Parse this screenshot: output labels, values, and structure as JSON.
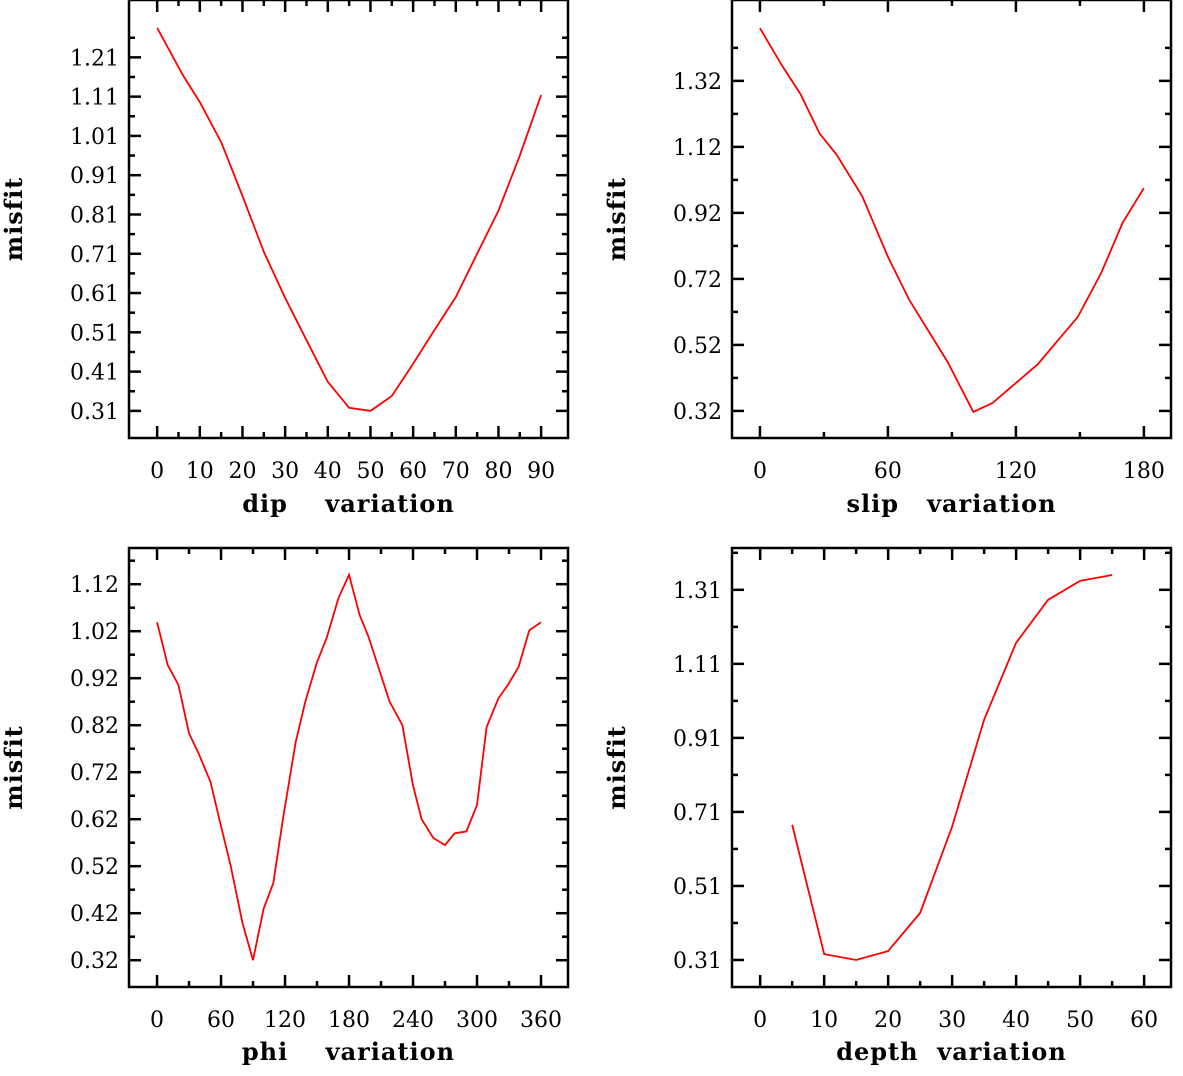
{
  "colors": {
    "line": "#ff0000",
    "axis": "#000000"
  },
  "chart_data": [
    {
      "type": "line",
      "title": "",
      "xlabel": "dip    variation",
      "ylabel": "misfit",
      "xlim": [
        -6.6,
        96.3
      ],
      "ylim": [
        0.241,
        1.356
      ],
      "xticks": [
        0,
        10,
        20,
        30,
        40,
        50,
        60,
        70,
        80,
        90
      ],
      "xtick_labels": [
        "0",
        "10",
        "20",
        "30",
        "40",
        "50",
        "60",
        "70",
        "80",
        "90"
      ],
      "yticks": [
        0.31,
        0.41,
        0.51,
        0.61,
        0.71,
        0.81,
        0.91,
        1.01,
        1.11,
        1.21
      ],
      "ytick_labels": [
        "0.31",
        "0.41",
        "0.51",
        "0.61",
        "0.71",
        "0.81",
        "0.91",
        "1.01",
        "1.11",
        "1.21"
      ],
      "grid": false,
      "series": [
        {
          "name": "dip",
          "x": [
            0,
            6,
            10,
            15,
            20,
            25,
            30,
            35,
            40,
            45,
            50,
            55,
            60,
            65,
            70,
            75,
            80,
            85,
            90
          ],
          "y": [
            1.285,
            1.165,
            1.096,
            0.994,
            0.857,
            0.715,
            0.598,
            0.49,
            0.384,
            0.318,
            0.31,
            0.348,
            0.43,
            0.516,
            0.6,
            0.71,
            0.82,
            0.96,
            1.114
          ]
        }
      ]
    },
    {
      "type": "line",
      "title": "",
      "xlabel": "slip   variation",
      "ylabel": "misfit",
      "xlim": [
        -13.1,
        192.7
      ],
      "ylim": [
        0.238,
        1.565
      ],
      "xticks": [
        0,
        60,
        120,
        180
      ],
      "xtick_labels": [
        "0",
        "60",
        "120",
        "180"
      ],
      "yticks": [
        0.32,
        0.52,
        0.72,
        0.92,
        1.12,
        1.32
      ],
      "ytick_labels": [
        "0.32",
        "0.52",
        "0.72",
        "0.92",
        "1.12",
        "1.32"
      ],
      "grid": false,
      "series": [
        {
          "name": "slip",
          "x": [
            0,
            10,
            19,
            28,
            36,
            48,
            60,
            70,
            88,
            100,
            109,
            130,
            149,
            160,
            170,
            180
          ],
          "y": [
            1.48,
            1.37,
            1.28,
            1.16,
            1.096,
            0.97,
            0.787,
            0.656,
            0.468,
            0.317,
            0.344,
            0.46,
            0.605,
            0.738,
            0.89,
            0.995
          ]
        }
      ]
    },
    {
      "type": "line",
      "title": "",
      "xlabel": "phi    variation",
      "ylabel": "misfit",
      "xlim": [
        -26.3,
        385.3
      ],
      "ylim": [
        0.263,
        1.197
      ],
      "xticks": [
        0,
        60,
        120,
        180,
        240,
        300,
        360
      ],
      "xtick_labels": [
        "0",
        "60",
        "120",
        "180",
        "240",
        "300",
        "360"
      ],
      "yticks": [
        0.32,
        0.42,
        0.52,
        0.62,
        0.72,
        0.82,
        0.92,
        1.02,
        1.12
      ],
      "ytick_labels": [
        "0.32",
        "0.42",
        "0.52",
        "0.62",
        "0.72",
        "0.82",
        "0.92",
        "1.02",
        "1.12"
      ],
      "grid": false,
      "series": [
        {
          "name": "phi",
          "x": [
            0,
            10,
            20,
            30,
            39,
            50,
            59,
            69,
            80,
            90,
            100,
            109,
            118,
            130,
            139,
            150,
            159,
            170,
            180,
            190,
            198,
            209,
            218,
            230,
            240,
            248,
            259,
            270,
            279,
            290,
            300,
            309,
            320,
            329,
            339,
            349,
            360
          ],
          "y": [
            1.039,
            0.948,
            0.906,
            0.803,
            0.76,
            0.7,
            0.614,
            0.522,
            0.4,
            0.32,
            0.43,
            0.484,
            0.62,
            0.784,
            0.87,
            0.954,
            1.005,
            1.09,
            1.14,
            1.054,
            1.01,
            0.933,
            0.87,
            0.82,
            0.692,
            0.62,
            0.58,
            0.565,
            0.59,
            0.594,
            0.65,
            0.816,
            0.877,
            0.906,
            0.944,
            1.022,
            1.039
          ]
        }
      ]
    },
    {
      "type": "line",
      "title": "",
      "xlabel": "depth  variation",
      "ylabel": "misfit",
      "xlim": [
        -4.4,
        64.2
      ],
      "ylim": [
        0.237,
        1.423
      ],
      "xticks": [
        0,
        10,
        20,
        30,
        40,
        50,
        60
      ],
      "xtick_labels": [
        "0",
        "10",
        "20",
        "30",
        "40",
        "50",
        "60"
      ],
      "yticks": [
        0.31,
        0.51,
        0.71,
        0.91,
        1.11,
        1.31
      ],
      "ytick_labels": [
        "0.31",
        "0.51",
        "0.71",
        "0.91",
        "1.11",
        "1.31"
      ],
      "grid": false,
      "series": [
        {
          "name": "depth",
          "x": [
            5,
            10,
            15,
            20,
            25,
            30,
            35,
            40,
            45,
            50,
            55
          ],
          "y": [
            0.675,
            0.326,
            0.31,
            0.334,
            0.437,
            0.67,
            0.959,
            1.167,
            1.283,
            1.334,
            1.35
          ]
        }
      ]
    }
  ]
}
